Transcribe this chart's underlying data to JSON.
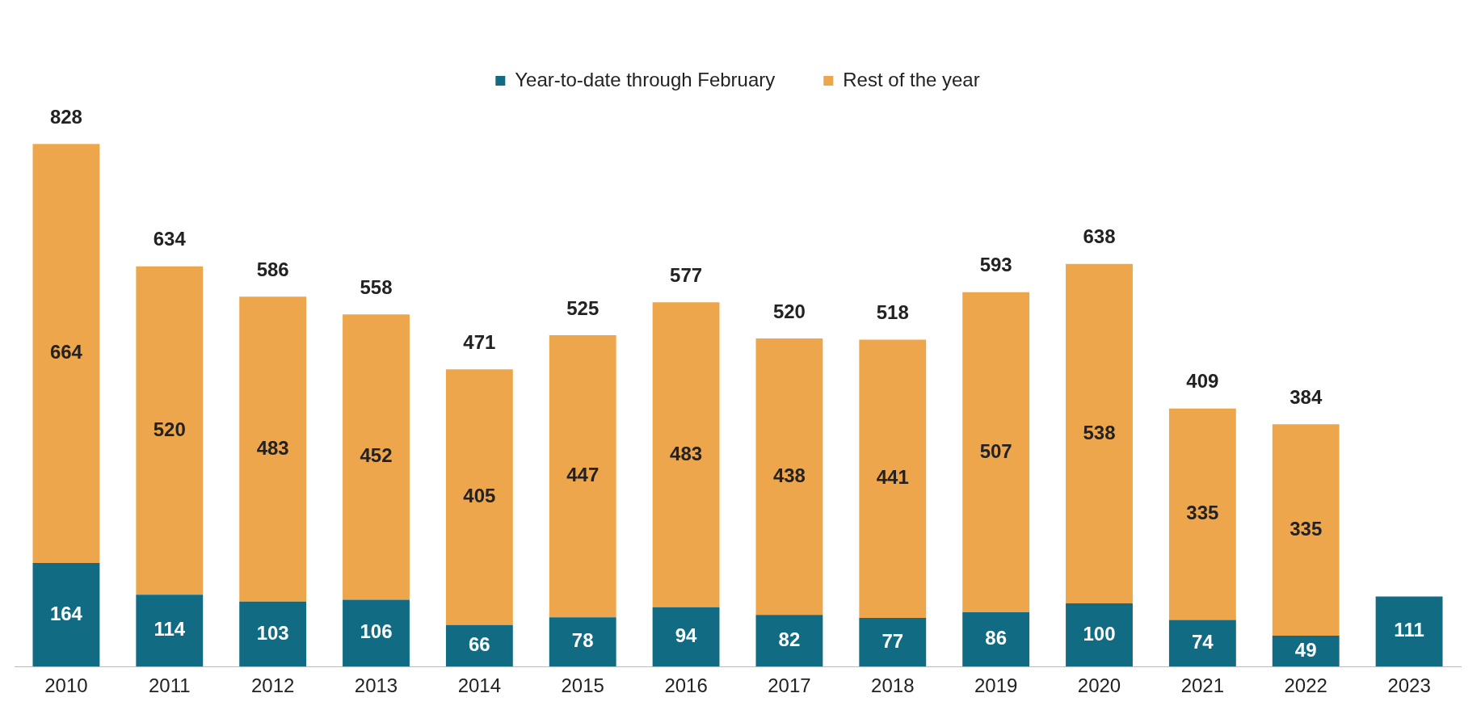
{
  "chart_data": {
    "type": "bar",
    "stacked": true,
    "categories": [
      "2010",
      "2011",
      "2012",
      "2013",
      "2014",
      "2015",
      "2016",
      "2017",
      "2018",
      "2019",
      "2020",
      "2021",
      "2022",
      "2023"
    ],
    "series": [
      {
        "name": "Year-to-date through February",
        "color": "#116b82",
        "values": [
          164,
          114,
          103,
          106,
          66,
          78,
          94,
          82,
          77,
          86,
          100,
          74,
          49,
          111
        ]
      },
      {
        "name": "Rest of the year",
        "color": "#eea64c",
        "values": [
          664,
          520,
          483,
          452,
          405,
          447,
          483,
          438,
          441,
          507,
          538,
          335,
          335,
          null
        ]
      }
    ],
    "data_labels": true,
    "totals": [
      "828",
      "634",
      "586",
      "558",
      "471",
      "525",
      "577",
      "520",
      "518",
      "593",
      "638",
      "409",
      "384",
      null
    ],
    "legend": "top",
    "grid": false
  }
}
